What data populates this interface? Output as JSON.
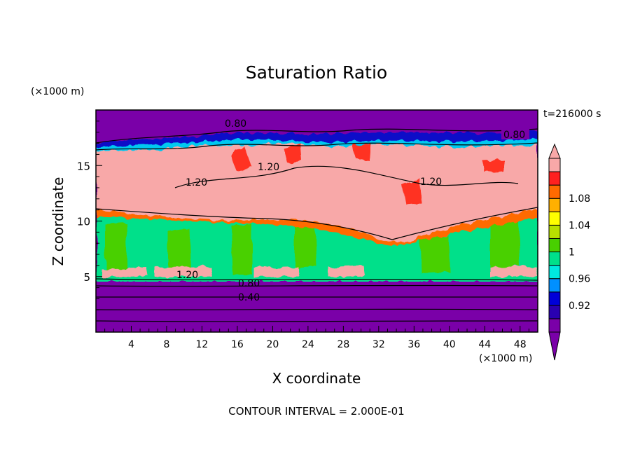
{
  "chart_data": {
    "type": "heatmap",
    "title": "Saturation Ratio",
    "xlabel": "X coordinate",
    "ylabel": "Z coordinate",
    "x_unit": "(×1000 m)",
    "y_unit": "(×1000 m)",
    "xlim": [
      0,
      50
    ],
    "ylim": [
      0,
      20
    ],
    "x_ticks": [
      "4",
      "8",
      "12",
      "16",
      "20",
      "24",
      "28",
      "32",
      "36",
      "40",
      "44",
      "48"
    ],
    "y_ticks": [
      "5",
      "10",
      "15"
    ],
    "time_label": "t=216000 s",
    "footer": "CONTOUR INTERVAL = 2.000E-01",
    "colorbar": {
      "labels": [
        "0.92",
        "0.96",
        "1",
        "1.04",
        "1.08"
      ],
      "colors": [
        "#7a00a8",
        "#2a00b0",
        "#0000d8",
        "#0090ff",
        "#00e8e0",
        "#00e08a",
        "#48d000",
        "#b8e000",
        "#ffff00",
        "#ffb000",
        "#ff6a00",
        "#ff2020",
        "#f8a8a8"
      ]
    },
    "contour_labels": [
      "0.80",
      "0.80",
      "1.20",
      "1.20",
      "1.20",
      "1.20",
      "0.80",
      "0.40"
    ]
  }
}
